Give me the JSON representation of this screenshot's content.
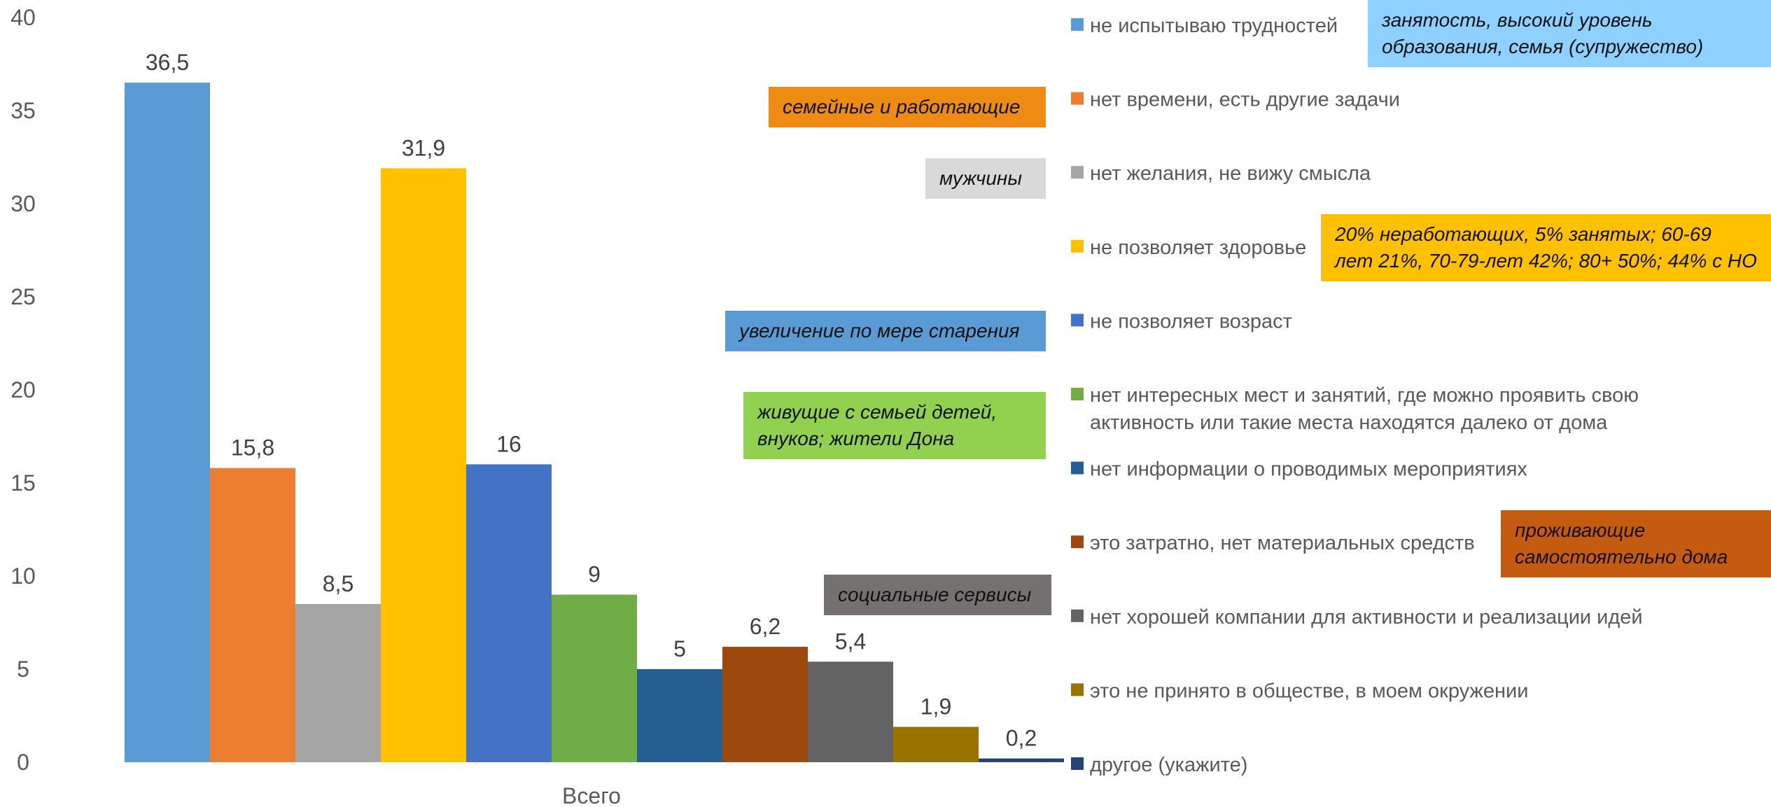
{
  "chart_data": {
    "type": "bar",
    "categories": [
      "Всего"
    ],
    "series": [
      {
        "name": "не испытываю трудностей",
        "values": [
          36.5
        ],
        "label": "36,5",
        "color": "#5B9BD5"
      },
      {
        "name": "нет времени, есть другие задачи",
        "values": [
          15.8
        ],
        "label": "15,8",
        "color": "#ED7D31"
      },
      {
        "name": "нет желания, не вижу смысла",
        "values": [
          8.5
        ],
        "label": "8,5",
        "color": "#A5A5A5"
      },
      {
        "name": "не позволяет здоровье",
        "values": [
          31.9
        ],
        "label": "31,9",
        "color": "#FFC000"
      },
      {
        "name": "не позволяет возраст",
        "values": [
          16
        ],
        "label": "16",
        "color": "#4472C4"
      },
      {
        "name": "нет интересных мест и занятий, где можно проявить свою активность или такие места находятся далеко от дома",
        "legend_lines": [
          "нет интересных мест и занятий, где можно проявить свою",
          "активность или такие места находятся далеко от дома"
        ],
        "values": [
          9
        ],
        "label": "9",
        "color": "#70AD47"
      },
      {
        "name": "нет информации о проводимых мероприятиях",
        "values": [
          5
        ],
        "label": "5",
        "color": "#255E91"
      },
      {
        "name": "это затратно, нет материальных средств",
        "values": [
          6.2
        ],
        "label": "6,2",
        "color": "#9E480E"
      },
      {
        "name": "нет хорошей компании для активности и реализации идей",
        "values": [
          5.4
        ],
        "label": "5,4",
        "color": "#636363"
      },
      {
        "name": "это не принято в обществе, в моем окружении",
        "values": [
          1.9
        ],
        "label": "1,9",
        "color": "#997300"
      },
      {
        "name": "другое (укажите)",
        "values": [
          0.2
        ],
        "label": "0,2",
        "color": "#264478"
      }
    ],
    "ylim": [
      0,
      40
    ],
    "yticks": [
      0,
      5,
      10,
      15,
      20,
      25,
      30,
      35,
      40
    ],
    "grid": false,
    "legend": "right",
    "title": "",
    "xlabel": "",
    "ylabel": ""
  },
  "annotations": [
    {
      "lines": [
        "занятость, высокий уровень",
        "образования, семья (супружество)"
      ],
      "color": "#8ED0FF"
    },
    {
      "lines": [
        "семейные и работающие"
      ],
      "color": "#ED8B12"
    },
    {
      "lines": [
        "мужчины"
      ],
      "color": "#D9D9D9"
    },
    {
      "lines": [
        "20% неработающих, 5% занятых; 60-69",
        "лет 21%, 70-79-лет 42%; 80+ 50%; 44% с НО"
      ],
      "color": "#FFC000"
    },
    {
      "lines": [
        "увеличение по мере старения"
      ],
      "color": "#5B9BD5"
    },
    {
      "lines": [
        "живущие с семьей детей,",
        "внуков; жители Дона"
      ],
      "color": "#92D050"
    },
    {
      "lines": [
        "проживающие",
        "самостоятельно дома"
      ],
      "color": "#C55A11"
    },
    {
      "lines": [
        "социальные сервисы"
      ],
      "color": "#757171"
    }
  ]
}
